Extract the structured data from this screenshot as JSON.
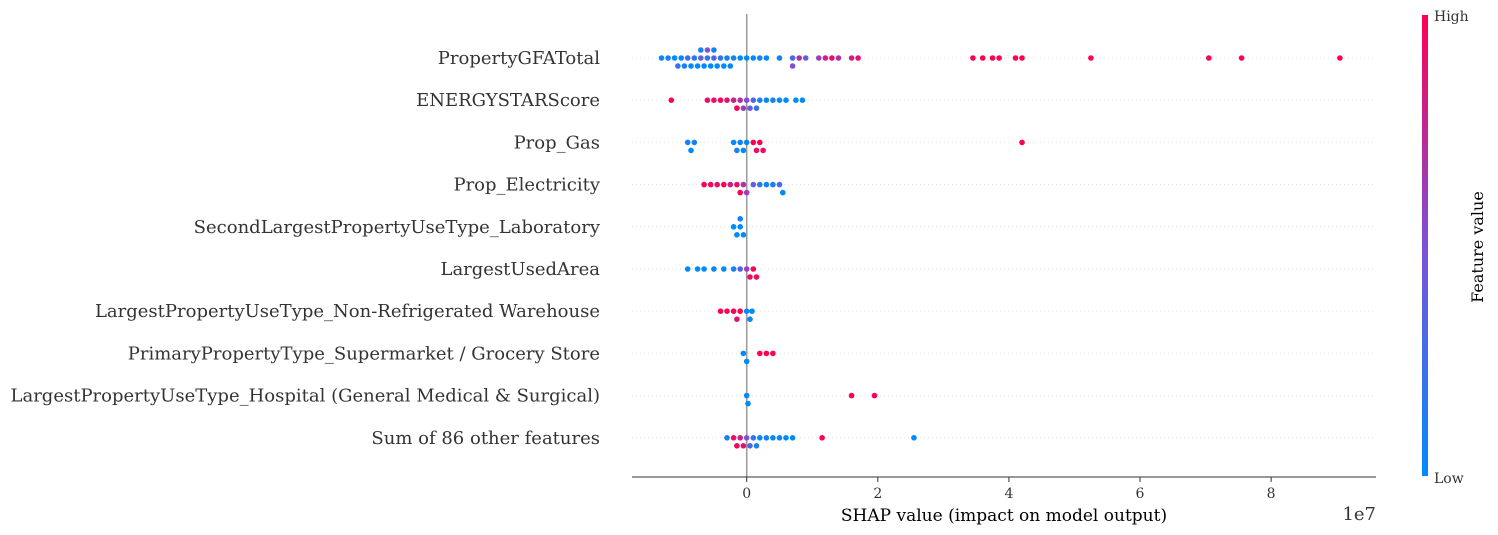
{
  "chart_data": {
    "type": "scatter",
    "subtype": "shap-beeswarm",
    "title": "",
    "xlabel": "SHAP value (impact on model output)",
    "x_offset_label": "1e7",
    "xlim": [
      -1.75,
      9.6
    ],
    "x_ticks": [
      0,
      2,
      4,
      6,
      8
    ],
    "x_tick_labels": [
      "0",
      "2",
      "4",
      "6",
      "8"
    ],
    "colorbar": {
      "title": "Feature value",
      "high_label": "High",
      "low_label": "Low",
      "low_color": "#008bfb",
      "mid_color": "#7e51d6",
      "high_color": "#ff0052"
    },
    "features": [
      {
        "name": "PropertyGFATotal",
        "points": [
          [
            -1.3,
            0.0
          ],
          [
            -1.2,
            0.1
          ],
          [
            -1.1,
            0.0
          ],
          [
            -1.05,
            0.2
          ],
          [
            -1.0,
            0.0
          ],
          [
            -0.95,
            0.1
          ],
          [
            -0.9,
            0.3
          ],
          [
            -0.85,
            0.0
          ],
          [
            -0.8,
            0.15
          ],
          [
            -0.75,
            0.0
          ],
          [
            -0.7,
            0.4
          ],
          [
            -0.7,
            0.1
          ],
          [
            -0.65,
            0.0
          ],
          [
            -0.6,
            0.2
          ],
          [
            -0.6,
            0.5
          ],
          [
            -0.55,
            0.0
          ],
          [
            -0.5,
            0.3
          ],
          [
            -0.5,
            0.1
          ],
          [
            -0.45,
            0.0
          ],
          [
            -0.4,
            0.2
          ],
          [
            -0.35,
            0.0
          ],
          [
            -0.3,
            0.1
          ],
          [
            -0.25,
            0.0
          ],
          [
            -0.2,
            0.05
          ],
          [
            -0.1,
            0.0
          ],
          [
            0.0,
            0.05
          ],
          [
            0.1,
            0.0
          ],
          [
            0.2,
            0.1
          ],
          [
            0.3,
            0.0
          ],
          [
            0.5,
            0.1
          ],
          [
            0.7,
            0.3
          ],
          [
            0.7,
            0.5
          ],
          [
            0.8,
            0.7
          ],
          [
            0.9,
            0.4
          ],
          [
            1.1,
            0.6
          ],
          [
            1.2,
            0.8
          ],
          [
            1.3,
            0.9
          ],
          [
            1.4,
            0.7
          ],
          [
            1.6,
            0.8
          ],
          [
            1.7,
            0.9
          ],
          [
            3.45,
            1.0
          ],
          [
            3.6,
            1.0
          ],
          [
            3.75,
            1.0
          ],
          [
            3.85,
            1.0
          ],
          [
            4.1,
            1.0
          ],
          [
            4.2,
            1.0
          ],
          [
            5.25,
            1.0
          ],
          [
            7.05,
            1.0
          ],
          [
            7.55,
            1.0
          ],
          [
            9.05,
            1.0
          ]
        ]
      },
      {
        "name": "ENERGYSTARScore",
        "points": [
          [
            -1.15,
            1.0
          ],
          [
            -0.6,
            0.9
          ],
          [
            -0.5,
            0.9
          ],
          [
            -0.4,
            1.0
          ],
          [
            -0.3,
            0.9
          ],
          [
            -0.2,
            0.8
          ],
          [
            -0.15,
            1.0
          ],
          [
            -0.1,
            0.7
          ],
          [
            -0.05,
            0.6
          ],
          [
            0.0,
            0.5
          ],
          [
            0.05,
            0.4
          ],
          [
            0.1,
            0.3
          ],
          [
            0.15,
            0.2
          ],
          [
            0.2,
            0.1
          ],
          [
            0.3,
            0.0
          ],
          [
            0.4,
            0.1
          ],
          [
            0.5,
            0.0
          ],
          [
            0.6,
            0.0
          ],
          [
            0.75,
            0.0
          ],
          [
            0.85,
            0.0
          ]
        ]
      },
      {
        "name": "Prop_Gas",
        "points": [
          [
            -0.9,
            0.1
          ],
          [
            -0.85,
            0.0
          ],
          [
            -0.8,
            0.1
          ],
          [
            -0.2,
            0.0
          ],
          [
            -0.15,
            0.1
          ],
          [
            -0.1,
            0.05
          ],
          [
            -0.05,
            0.0
          ],
          [
            0.0,
            0.05
          ],
          [
            0.1,
            1.0
          ],
          [
            0.15,
            0.9
          ],
          [
            0.2,
            1.0
          ],
          [
            0.25,
            0.95
          ],
          [
            4.2,
            1.0
          ]
        ]
      },
      {
        "name": "Prop_Electricity",
        "points": [
          [
            -0.65,
            1.0
          ],
          [
            -0.55,
            0.95
          ],
          [
            -0.45,
            0.9
          ],
          [
            -0.35,
            1.0
          ],
          [
            -0.25,
            0.8
          ],
          [
            -0.15,
            0.9
          ],
          [
            -0.1,
            1.0
          ],
          [
            -0.05,
            0.7
          ],
          [
            0.0,
            0.6
          ],
          [
            0.1,
            0.4
          ],
          [
            0.2,
            0.2
          ],
          [
            0.3,
            0.0
          ],
          [
            0.4,
            0.1
          ],
          [
            0.5,
            0.3
          ],
          [
            0.55,
            0.0
          ]
        ]
      },
      {
        "name": "SecondLargestPropertyUseType_Laboratory",
        "points": [
          [
            -0.2,
            0.0
          ],
          [
            -0.15,
            0.0
          ],
          [
            -0.1,
            0.0
          ],
          [
            -0.1,
            0.05
          ],
          [
            -0.05,
            0.0
          ]
        ]
      },
      {
        "name": "LargestUsedArea",
        "points": [
          [
            -0.9,
            0.0
          ],
          [
            -0.75,
            0.0
          ],
          [
            -0.65,
            0.0
          ],
          [
            -0.5,
            0.05
          ],
          [
            -0.35,
            0.0
          ],
          [
            -0.2,
            0.1
          ],
          [
            -0.1,
            0.3
          ],
          [
            0.0,
            0.6
          ],
          [
            0.05,
            0.9
          ],
          [
            0.1,
            1.0
          ],
          [
            0.15,
            0.95
          ]
        ]
      },
      {
        "name": "LargestPropertyUseType_Non-Refrigerated Warehouse",
        "points": [
          [
            -0.4,
            1.0
          ],
          [
            -0.3,
            0.95
          ],
          [
            -0.2,
            1.0
          ],
          [
            -0.15,
            0.9
          ],
          [
            -0.1,
            1.0
          ],
          [
            0.0,
            0.0
          ],
          [
            0.05,
            0.05
          ],
          [
            0.08,
            0.0
          ]
        ]
      },
      {
        "name": "PrimaryPropertyType_Supermarket / Grocery Store",
        "points": [
          [
            -0.05,
            0.0
          ],
          [
            0.0,
            0.0
          ],
          [
            0.2,
            1.0
          ],
          [
            0.3,
            1.0
          ],
          [
            0.4,
            1.0
          ]
        ]
      },
      {
        "name": "LargestPropertyUseType_Hospital (General Medical & Surgical)",
        "points": [
          [
            0.0,
            0.0
          ],
          [
            0.02,
            0.0
          ],
          [
            1.6,
            1.0
          ],
          [
            1.95,
            1.0
          ]
        ]
      },
      {
        "name": "Sum of 86 other features",
        "points": [
          [
            -0.3,
            0.1
          ],
          [
            -0.2,
            0.9
          ],
          [
            -0.15,
            1.0
          ],
          [
            -0.1,
            0.8
          ],
          [
            -0.05,
            0.9
          ],
          [
            0.0,
            0.5
          ],
          [
            0.05,
            0.3
          ],
          [
            0.1,
            0.2
          ],
          [
            0.15,
            0.1
          ],
          [
            0.2,
            0.0
          ],
          [
            0.3,
            0.1
          ],
          [
            0.4,
            0.0
          ],
          [
            0.5,
            0.05
          ],
          [
            0.6,
            0.0
          ],
          [
            0.7,
            0.0
          ],
          [
            1.15,
            1.0
          ],
          [
            2.55,
            0.0
          ]
        ]
      }
    ]
  }
}
